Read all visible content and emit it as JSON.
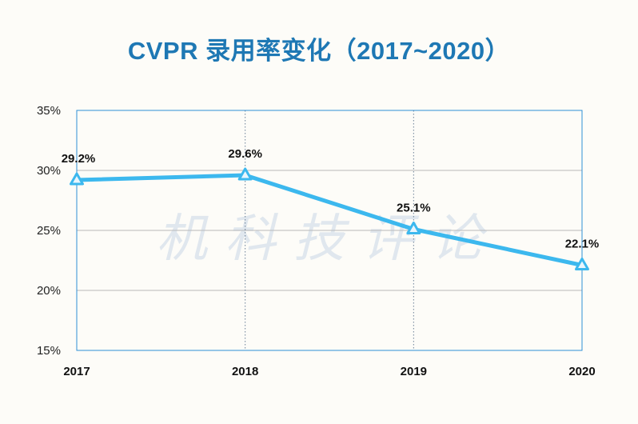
{
  "chart_data": {
    "type": "line",
    "title": "CVPR 录用率变化（2017~2020）",
    "categories": [
      "2017",
      "2018",
      "2019",
      "2020"
    ],
    "series": [
      {
        "values": [
          29.2,
          29.6,
          25.1,
          22.1
        ],
        "labels": [
          "29.2%",
          "29.6%",
          "25.1%",
          "22.1%"
        ],
        "color": "#3cb8ee",
        "marker": "triangle"
      }
    ],
    "y_ticks": [
      "15%",
      "20%",
      "25%",
      "30%",
      "35%"
    ],
    "ylim": [
      15,
      35
    ],
    "grid": true,
    "watermark": "机科技评论"
  }
}
